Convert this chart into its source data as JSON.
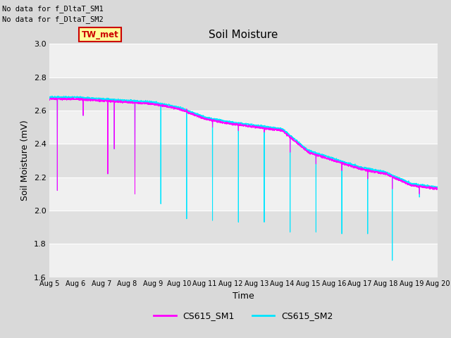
{
  "title": "Soil Moisture",
  "xlabel": "Time",
  "ylabel": "Soil Moisture (mV)",
  "ylim": [
    1.6,
    3.0
  ],
  "xlim_days": 15,
  "background_color": "#d9d9d9",
  "plot_bg_color": "#e8e8e8",
  "sm1_color": "#ff00ff",
  "sm2_color": "#00e5ff",
  "annotation_text1": "No data for f_DltaT_SM1",
  "annotation_text2": "No data for f_DltaT_SM2",
  "tw_met_label": "TW_met",
  "tw_met_bg": "#ffff99",
  "tw_met_border": "#cc0000",
  "xtick_labels": [
    "Aug 5",
    "Aug 6",
    "Aug 7",
    "Aug 8",
    "Aug 9",
    "Aug 10",
    "Aug 11",
    "Aug 12",
    "Aug 13",
    "Aug 14",
    "Aug 15",
    "Aug 16",
    "Aug 17",
    "Aug 18",
    "Aug 19",
    "Aug 20"
  ],
  "ytick_vals": [
    1.6,
    1.8,
    2.0,
    2.2,
    2.4,
    2.6,
    2.8,
    3.0
  ],
  "legend_sm1": "CS615_SM1",
  "legend_sm2": "CS615_SM2",
  "band_color_light": "#f0f0f0",
  "band_color_dark": "#e0e0e0",
  "grid_color": "#ffffff"
}
